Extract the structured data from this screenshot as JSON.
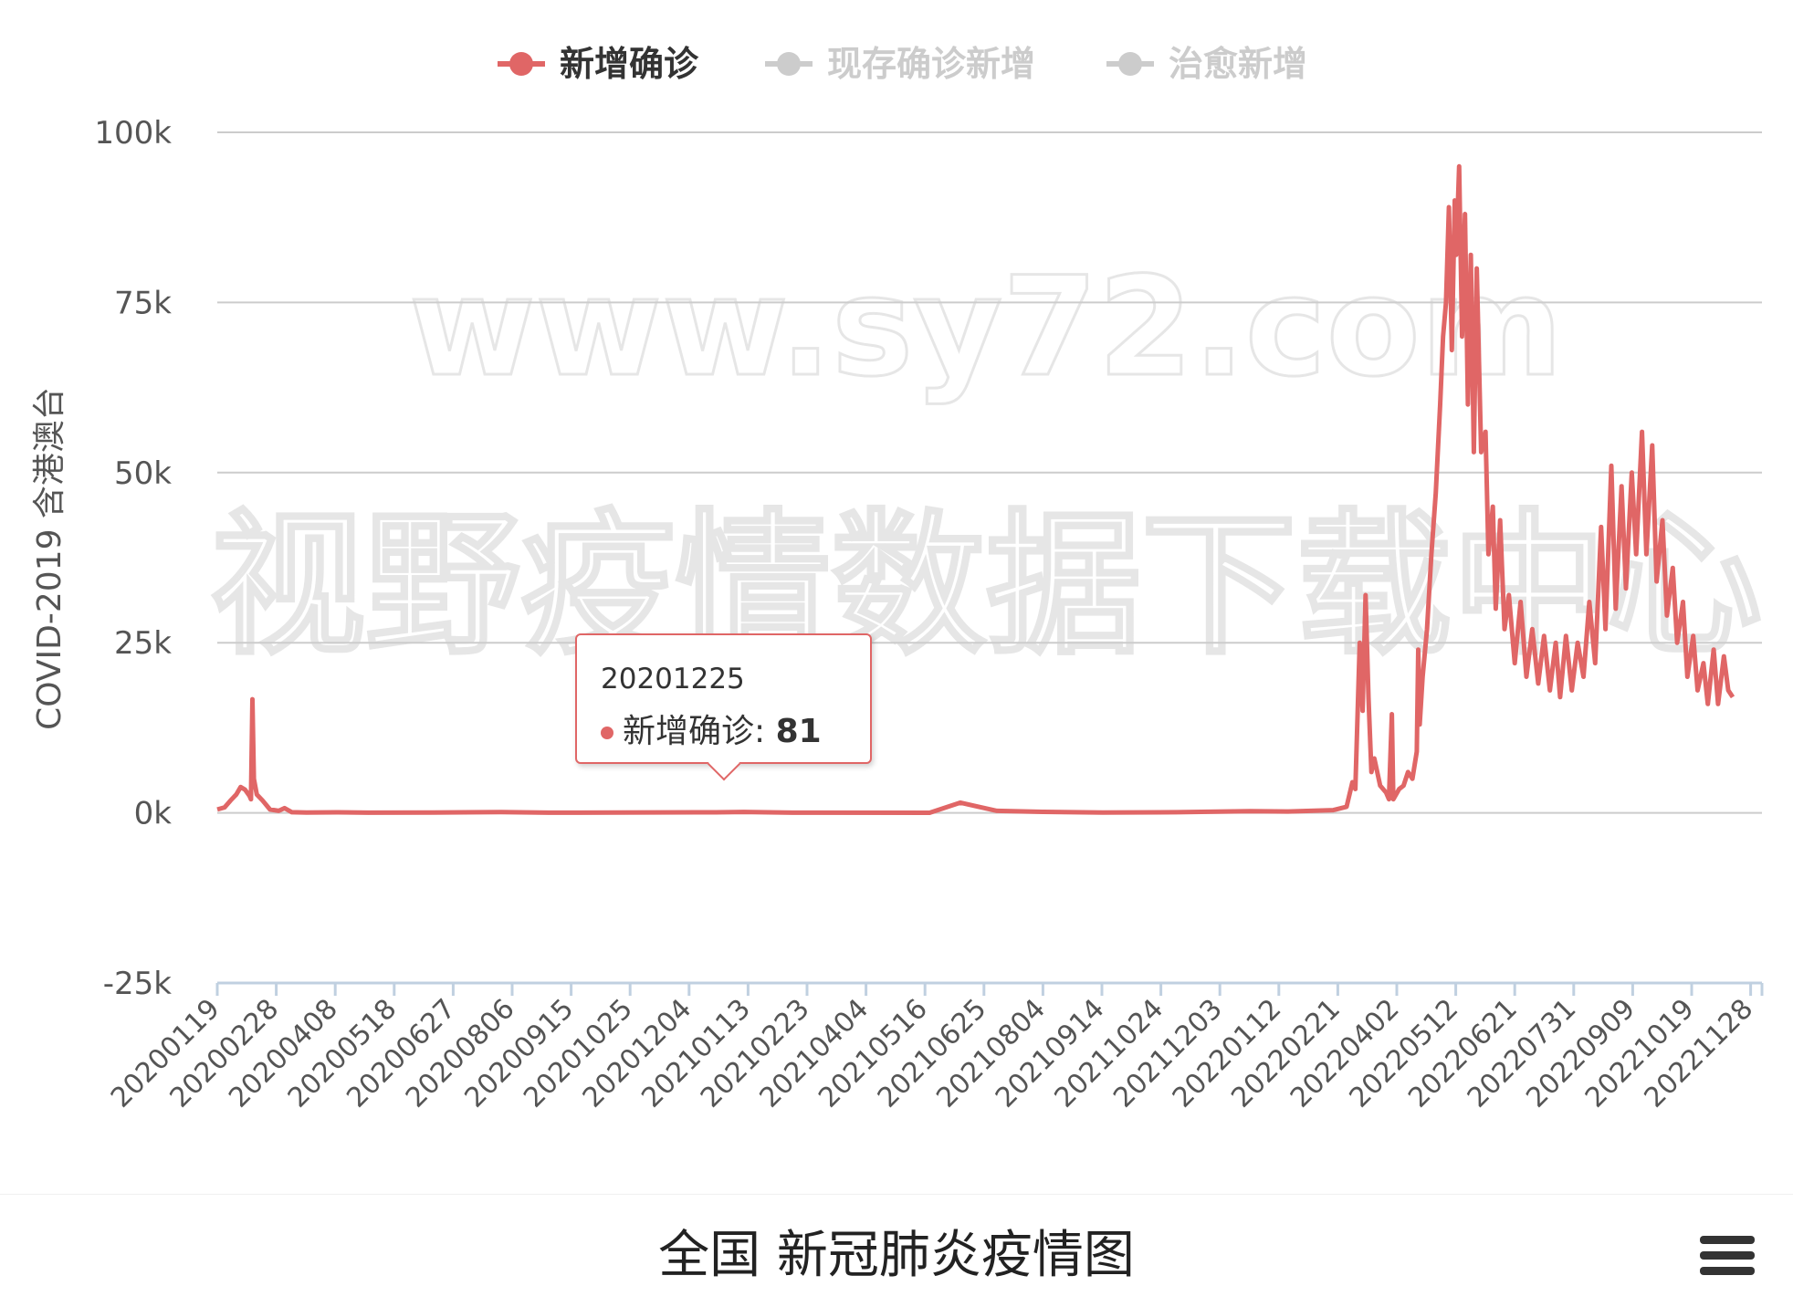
{
  "legend": [
    {
      "label": "新增确诊",
      "color": "#e06666",
      "active": true
    },
    {
      "label": "现存确诊新增",
      "color": "#cccccc",
      "active": false
    },
    {
      "label": "治愈新增",
      "color": "#cccccc",
      "active": false
    }
  ],
  "watermark": {
    "line1": "www.sy72.com",
    "line2": "视野疫情数据下载中心"
  },
  "tooltip": {
    "date": "20201225",
    "series": "新增确诊",
    "sep": ":",
    "value": "81"
  },
  "chart_title": "全国 新冠肺炎疫情图",
  "menu_icon": "hamburger-menu-icon",
  "chart_data": {
    "type": "line",
    "title": "全国 新冠肺炎疫情图",
    "ylabel": "COVID-2019 含港澳台",
    "xlabel": "",
    "ylim": [
      -25000,
      100000
    ],
    "yticks": [
      -25000,
      0,
      25000,
      50000,
      75000,
      100000
    ],
    "ytick_labels": [
      "-25k",
      "0k",
      "25k",
      "50k",
      "75k",
      "100k"
    ],
    "xtick_labels": [
      "20200119",
      "20200228",
      "20200408",
      "20200518",
      "20200627",
      "20200806",
      "20200915",
      "20201025",
      "20201204",
      "20210113",
      "20210223",
      "20210404",
      "20210516",
      "20210625",
      "20210804",
      "20210914",
      "20211024",
      "20211203",
      "20220112",
      "20220221",
      "20220402",
      "20220512",
      "20220621",
      "20220731",
      "20220909",
      "20221019",
      "20221128"
    ],
    "x_start": "2020-01-19",
    "x_end": "2022-12-10",
    "grid": true,
    "legend_position": "top",
    "series": [
      {
        "name": "新增确诊",
        "color": "#e06666",
        "points": [
          [
            "2020-01-19",
            500
          ],
          [
            "2020-01-24",
            800
          ],
          [
            "2020-01-28",
            1800
          ],
          [
            "2020-02-01",
            2700
          ],
          [
            "2020-02-04",
            3800
          ],
          [
            "2020-02-07",
            3400
          ],
          [
            "2020-02-10",
            2500
          ],
          [
            "2020-02-11",
            2000
          ],
          [
            "2020-02-12",
            16700
          ],
          [
            "2020-02-13",
            5000
          ],
          [
            "2020-02-15",
            2700
          ],
          [
            "2020-02-19",
            1800
          ],
          [
            "2020-02-24",
            500
          ],
          [
            "2020-03-01",
            300
          ],
          [
            "2020-03-05",
            700
          ],
          [
            "2020-03-10",
            100
          ],
          [
            "2020-03-20",
            50
          ],
          [
            "2020-04-10",
            80
          ],
          [
            "2020-05-01",
            30
          ],
          [
            "2020-06-15",
            40
          ],
          [
            "2020-07-31",
            120
          ],
          [
            "2020-09-01",
            30
          ],
          [
            "2020-12-25",
            81
          ],
          [
            "2021-01-13",
            140
          ],
          [
            "2021-02-15",
            30
          ],
          [
            "2021-05-20",
            20
          ],
          [
            "2021-06-10",
            1500
          ],
          [
            "2021-06-20",
            1000
          ],
          [
            "2021-07-05",
            300
          ],
          [
            "2021-08-05",
            150
          ],
          [
            "2021-09-15",
            60
          ],
          [
            "2021-11-05",
            100
          ],
          [
            "2021-12-25",
            250
          ],
          [
            "2022-01-20",
            200
          ],
          [
            "2022-02-20",
            400
          ],
          [
            "2022-03-01",
            900
          ],
          [
            "2022-03-05",
            4500
          ],
          [
            "2022-03-07",
            3500
          ],
          [
            "2022-03-10",
            25000
          ],
          [
            "2022-03-12",
            15000
          ],
          [
            "2022-03-14",
            32000
          ],
          [
            "2022-03-16",
            17000
          ],
          [
            "2022-03-18",
            6000
          ],
          [
            "2022-03-20",
            8000
          ],
          [
            "2022-03-24",
            4000
          ],
          [
            "2022-03-28",
            3000
          ],
          [
            "2022-03-30",
            2000
          ],
          [
            "2022-04-01",
            14500
          ],
          [
            "2022-04-02",
            2000
          ],
          [
            "2022-04-06",
            3500
          ],
          [
            "2022-04-09",
            4000
          ],
          [
            "2022-04-12",
            6000
          ],
          [
            "2022-04-15",
            5000
          ],
          [
            "2022-04-18",
            9000
          ],
          [
            "2022-04-19",
            24000
          ],
          [
            "2022-04-20",
            13000
          ],
          [
            "2022-04-22",
            20000
          ],
          [
            "2022-04-25",
            27000
          ],
          [
            "2022-04-28",
            38000
          ],
          [
            "2022-05-01",
            47000
          ],
          [
            "2022-05-04",
            60000
          ],
          [
            "2022-05-06",
            70000
          ],
          [
            "2022-05-08",
            75000
          ],
          [
            "2022-05-10",
            89000
          ],
          [
            "2022-05-12",
            68000
          ],
          [
            "2022-05-14",
            90000
          ],
          [
            "2022-05-15",
            82000
          ],
          [
            "2022-05-17",
            95000
          ],
          [
            "2022-05-19",
            70000
          ],
          [
            "2022-05-21",
            88000
          ],
          [
            "2022-05-23",
            60000
          ],
          [
            "2022-05-25",
            82000
          ],
          [
            "2022-05-27",
            53000
          ],
          [
            "2022-05-29",
            80000
          ],
          [
            "2022-06-01",
            53000
          ],
          [
            "2022-06-04",
            56000
          ],
          [
            "2022-06-06",
            38000
          ],
          [
            "2022-06-09",
            45000
          ],
          [
            "2022-06-11",
            30000
          ],
          [
            "2022-06-14",
            43000
          ],
          [
            "2022-06-17",
            27000
          ],
          [
            "2022-06-20",
            32000
          ],
          [
            "2022-06-24",
            22000
          ],
          [
            "2022-06-28",
            31000
          ],
          [
            "2022-07-02",
            20000
          ],
          [
            "2022-07-06",
            27000
          ],
          [
            "2022-07-10",
            19000
          ],
          [
            "2022-07-14",
            26000
          ],
          [
            "2022-07-18",
            18000
          ],
          [
            "2022-07-22",
            25000
          ],
          [
            "2022-07-25",
            17000
          ],
          [
            "2022-07-29",
            26000
          ],
          [
            "2022-08-02",
            18000
          ],
          [
            "2022-08-06",
            25000
          ],
          [
            "2022-08-10",
            20000
          ],
          [
            "2022-08-14",
            31000
          ],
          [
            "2022-08-18",
            22000
          ],
          [
            "2022-08-22",
            42000
          ],
          [
            "2022-08-25",
            27000
          ],
          [
            "2022-08-29",
            51000
          ],
          [
            "2022-09-01",
            30000
          ],
          [
            "2022-09-05",
            48000
          ],
          [
            "2022-09-08",
            33000
          ],
          [
            "2022-09-12",
            50000
          ],
          [
            "2022-09-15",
            38000
          ],
          [
            "2022-09-19",
            56000
          ],
          [
            "2022-09-22",
            38000
          ],
          [
            "2022-09-26",
            54000
          ],
          [
            "2022-09-29",
            34000
          ],
          [
            "2022-10-03",
            43000
          ],
          [
            "2022-10-06",
            29000
          ],
          [
            "2022-10-10",
            36000
          ],
          [
            "2022-10-13",
            25000
          ],
          [
            "2022-10-17",
            31000
          ],
          [
            "2022-10-20",
            20000
          ],
          [
            "2022-10-24",
            26000
          ],
          [
            "2022-10-27",
            18000
          ],
          [
            "2022-10-31",
            22000
          ],
          [
            "2022-11-03",
            16000
          ],
          [
            "2022-11-07",
            24000
          ],
          [
            "2022-11-10",
            16000
          ],
          [
            "2022-11-14",
            23000
          ],
          [
            "2022-11-17",
            18000
          ],
          [
            "2022-11-20",
            17000
          ]
        ]
      }
    ]
  }
}
